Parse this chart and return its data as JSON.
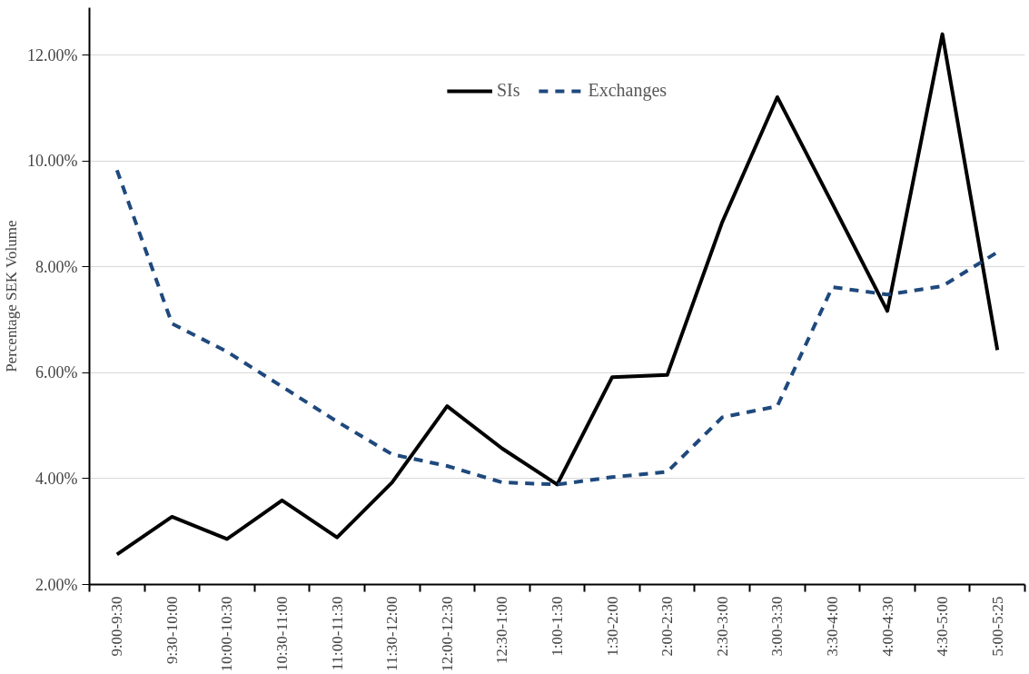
{
  "chart_data": {
    "type": "line",
    "ylabel": "Percentage SEK Volume",
    "categories": [
      "9:00-9:30",
      "9:30-10:00",
      "10:00-10:30",
      "10:30-11:00",
      "11:00-11:30",
      "11:30-12:00",
      "12:00-12:30",
      "12:30-1:00",
      "1:00-1:30",
      "1:30-2:00",
      "2:00-2:30",
      "2:30-3:00",
      "3:00-3:30",
      "3:30-4:00",
      "4:00-4:30",
      "4:30-5:00",
      "5:00-5:25"
    ],
    "series": [
      {
        "name": "SIs",
        "color": "#000000",
        "line_style": "solid",
        "values": [
          2.57,
          3.28,
          2.86,
          3.59,
          2.89,
          3.93,
          5.37,
          4.57,
          3.89,
          5.92,
          5.96,
          8.85,
          11.21,
          9.2,
          7.17,
          12.4,
          6.43
        ]
      },
      {
        "name": "Exchanges",
        "color": "#1f497d",
        "line_style": "dashed",
        "values": [
          9.83,
          6.93,
          6.4,
          5.74,
          5.08,
          4.46,
          4.24,
          3.93,
          3.89,
          4.03,
          4.13,
          5.16,
          5.37,
          7.62,
          7.48,
          7.64,
          8.28
        ]
      }
    ],
    "ylim": [
      2,
      12.9
    ],
    "yticks": [
      {
        "value": 2,
        "label": "2.00%"
      },
      {
        "value": 4,
        "label": "4.00%"
      },
      {
        "value": 6,
        "label": "6.00%"
      },
      {
        "value": 8,
        "label": "8.00%"
      },
      {
        "value": 10,
        "label": "10.00%"
      },
      {
        "value": 12,
        "label": "12.00%"
      }
    ],
    "grid": "y",
    "legend": "top",
    "marker": "none"
  }
}
